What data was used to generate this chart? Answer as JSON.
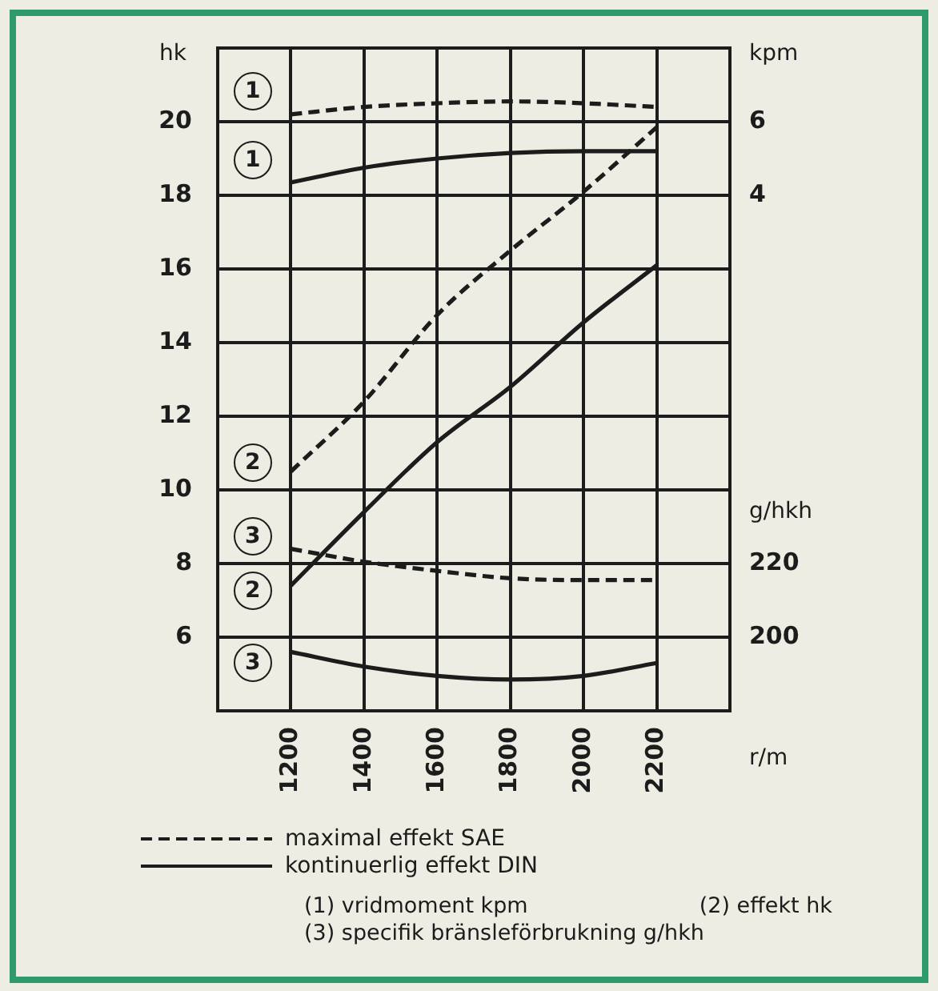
{
  "chart_data": {
    "type": "line",
    "ylabel": "hk",
    "y2label": "kpm",
    "y3label": "g/hkh",
    "xlabel": "r/m",
    "x": [
      1200,
      1400,
      1600,
      1800,
      2000,
      2200
    ],
    "xlim": [
      1000,
      2400
    ],
    "xticks": [
      1200,
      1400,
      1600,
      1800,
      2000,
      2200
    ],
    "ylim": [
      4,
      22
    ],
    "yticks": [
      6,
      8,
      10,
      12,
      14,
      16,
      18,
      20
    ],
    "y2lim": [
      -10,
      8
    ],
    "y2ticks": [
      4,
      6
    ],
    "y3lim": [
      180,
      360
    ],
    "y3ticks": [
      200,
      220
    ],
    "grid": true,
    "marker": "none",
    "series": [
      {
        "axis": "y2",
        "line_style": "dashed",
        "color": "#1c1c1c",
        "values": [
          6.2,
          6.4,
          6.5,
          6.55,
          6.5,
          6.4
        ]
      },
      {
        "axis": "y2",
        "line_style": "solid",
        "color": "#1c1c1c",
        "values": [
          4.35,
          4.75,
          5.0,
          5.15,
          5.2,
          5.2
        ]
      },
      {
        "axis": "y",
        "line_style": "dashed",
        "color": "#1c1c1c",
        "values": [
          10.5,
          12.4,
          14.75,
          16.5,
          18.1,
          19.85
        ]
      },
      {
        "axis": "y",
        "line_style": "solid",
        "color": "#1c1c1c",
        "values": [
          7.4,
          9.4,
          11.3,
          12.8,
          14.55,
          16.1
        ]
      },
      {
        "axis": "y3",
        "line_style": "dashed",
        "color": "#1c1c1c",
        "values": [
          224,
          220.5,
          218,
          216,
          215.5,
          215.5
        ]
      },
      {
        "axis": "y3",
        "line_style": "solid",
        "color": "#1c1c1c",
        "values": [
          196,
          192,
          189.5,
          188.5,
          189.5,
          193
        ]
      }
    ],
    "annotations": [
      {
        "text": "1",
        "y": 20.8
      },
      {
        "text": "1",
        "y": 18.9
      },
      {
        "text": "2",
        "y": 10.7
      },
      {
        "text": "3",
        "y": 8.7
      },
      {
        "text": "2",
        "y": 7.2
      },
      {
        "text": "3",
        "y": 5.25
      },
      "maximal effekt SAE",
      "kontinuerlig effekt DIN",
      "(1) vridmoment kpm",
      "(2) effekt hk",
      "(3) specifik bränsleförbrukning g/hkh"
    ]
  }
}
